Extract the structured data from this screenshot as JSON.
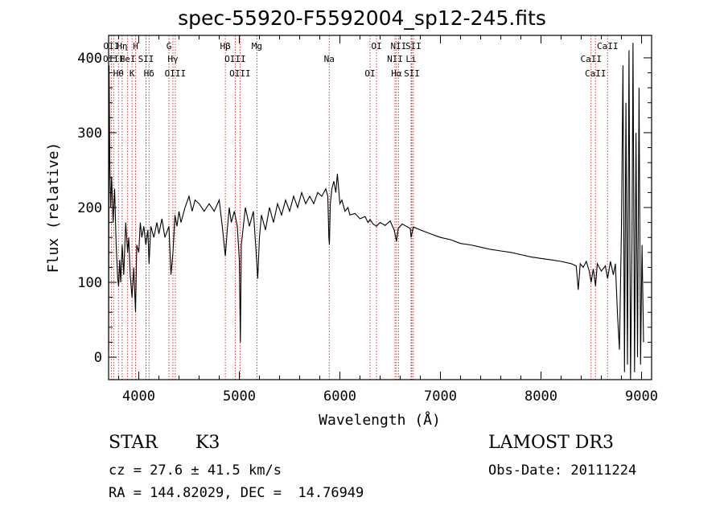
{
  "header": {
    "title": "spec-55920-F5592004_sp12-245.fits"
  },
  "info": {
    "object_class": "STAR",
    "subclass": "K3",
    "survey": "LAMOST DR3",
    "cz_line": "cz = 27.6 ± 41.5 km/s",
    "obs_date_line": "Obs-Date: 20111224",
    "coords_line": "RA = 144.82029, DEC =  14.76949"
  },
  "chart_data": {
    "type": "line",
    "title": "spec-55920-F5592004_sp12-245.fits",
    "xlabel": "Wavelength (Å)",
    "ylabel": "Flux (relative)",
    "xlim": [
      3700,
      9100
    ],
    "ylim": [
      -30,
      430
    ],
    "xticks": [
      4000,
      5000,
      6000,
      7000,
      8000,
      9000
    ],
    "yticks": [
      0,
      100,
      200,
      300,
      400
    ],
    "line_color": "#000000",
    "marker_color": "#cc2222",
    "series": [
      {
        "name": "spectrum",
        "points": [
          [
            3700,
            10
          ],
          [
            3705,
            390
          ],
          [
            3712,
            260
          ],
          [
            3720,
            200
          ],
          [
            3730,
            240
          ],
          [
            3745,
            180
          ],
          [
            3760,
            225
          ],
          [
            3775,
            150
          ],
          [
            3790,
            105
          ],
          [
            3800,
            95
          ],
          [
            3810,
            130
          ],
          [
            3820,
            100
          ],
          [
            3835,
            150
          ],
          [
            3850,
            110
          ],
          [
            3870,
            180
          ],
          [
            3889,
            140
          ],
          [
            3900,
            160
          ],
          [
            3915,
            110
          ],
          [
            3933,
            80
          ],
          [
            3950,
            120
          ],
          [
            3968,
            60
          ],
          [
            3980,
            150
          ],
          [
            4000,
            140
          ],
          [
            4015,
            180
          ],
          [
            4030,
            160
          ],
          [
            4050,
            175
          ],
          [
            4070,
            150
          ],
          [
            4090,
            170
          ],
          [
            4102,
            125
          ],
          [
            4120,
            175
          ],
          [
            4150,
            160
          ],
          [
            4180,
            180
          ],
          [
            4200,
            165
          ],
          [
            4230,
            185
          ],
          [
            4260,
            160
          ],
          [
            4300,
            175
          ],
          [
            4320,
            110
          ],
          [
            4340,
            140
          ],
          [
            4360,
            190
          ],
          [
            4380,
            175
          ],
          [
            4400,
            195
          ],
          [
            4420,
            180
          ],
          [
            4460,
            200
          ],
          [
            4500,
            215
          ],
          [
            4530,
            195
          ],
          [
            4560,
            210
          ],
          [
            4600,
            205
          ],
          [
            4650,
            195
          ],
          [
            4700,
            205
          ],
          [
            4750,
            195
          ],
          [
            4800,
            210
          ],
          [
            4830,
            175
          ],
          [
            4861,
            135
          ],
          [
            4880,
            170
          ],
          [
            4900,
            200
          ],
          [
            4920,
            180
          ],
          [
            4950,
            195
          ],
          [
            4980,
            175
          ],
          [
            5000,
            130
          ],
          [
            5010,
            20
          ],
          [
            5020,
            150
          ],
          [
            5060,
            200
          ],
          [
            5100,
            175
          ],
          [
            5140,
            195
          ],
          [
            5167,
            140
          ],
          [
            5183,
            105
          ],
          [
            5200,
            160
          ],
          [
            5220,
            190
          ],
          [
            5260,
            170
          ],
          [
            5300,
            200
          ],
          [
            5340,
            180
          ],
          [
            5380,
            205
          ],
          [
            5420,
            190
          ],
          [
            5460,
            210
          ],
          [
            5500,
            195
          ],
          [
            5540,
            215
          ],
          [
            5580,
            200
          ],
          [
            5620,
            220
          ],
          [
            5660,
            205
          ],
          [
            5700,
            215
          ],
          [
            5740,
            205
          ],
          [
            5780,
            220
          ],
          [
            5820,
            215
          ],
          [
            5860,
            225
          ],
          [
            5880,
            215
          ],
          [
            5890,
            160
          ],
          [
            5896,
            150
          ],
          [
            5905,
            205
          ],
          [
            5920,
            225
          ],
          [
            5940,
            235
          ],
          [
            5960,
            220
          ],
          [
            5975,
            245
          ],
          [
            5985,
            230
          ],
          [
            6000,
            205
          ],
          [
            6020,
            210
          ],
          [
            6050,
            195
          ],
          [
            6080,
            200
          ],
          [
            6100,
            190
          ],
          [
            6150,
            192
          ],
          [
            6200,
            185
          ],
          [
            6250,
            188
          ],
          [
            6280,
            180
          ],
          [
            6300,
            184
          ],
          [
            6330,
            178
          ],
          [
            6364,
            175
          ],
          [
            6400,
            180
          ],
          [
            6450,
            176
          ],
          [
            6500,
            182
          ],
          [
            6540,
            170
          ],
          [
            6563,
            155
          ],
          [
            6580,
            172
          ],
          [
            6620,
            178
          ],
          [
            6660,
            175
          ],
          [
            6700,
            172
          ],
          [
            6708,
            160
          ],
          [
            6730,
            174
          ],
          [
            6800,
            170
          ],
          [
            6900,
            165
          ],
          [
            7000,
            160
          ],
          [
            7100,
            157
          ],
          [
            7200,
            152
          ],
          [
            7300,
            150
          ],
          [
            7400,
            147
          ],
          [
            7500,
            144
          ],
          [
            7600,
            142
          ],
          [
            7700,
            140
          ],
          [
            7800,
            137
          ],
          [
            7900,
            134
          ],
          [
            8000,
            132
          ],
          [
            8100,
            130
          ],
          [
            8200,
            128
          ],
          [
            8300,
            125
          ],
          [
            8350,
            122
          ],
          [
            8370,
            90
          ],
          [
            8390,
            125
          ],
          [
            8420,
            120
          ],
          [
            8450,
            128
          ],
          [
            8480,
            115
          ],
          [
            8498,
            100
          ],
          [
            8520,
            118
          ],
          [
            8542,
            95
          ],
          [
            8560,
            125
          ],
          [
            8600,
            115
          ],
          [
            8640,
            122
          ],
          [
            8662,
            105
          ],
          [
            8690,
            128
          ],
          [
            8720,
            110
          ],
          [
            8740,
            125
          ],
          [
            8760,
            60
          ],
          [
            8780,
            10
          ],
          [
            8800,
            170
          ],
          [
            8815,
            390
          ],
          [
            8830,
            -20
          ],
          [
            8845,
            340
          ],
          [
            8860,
            -10
          ],
          [
            8875,
            410
          ],
          [
            8890,
            -30
          ],
          [
            8905,
            150
          ],
          [
            8915,
            420
          ],
          [
            8930,
            -20
          ],
          [
            8945,
            300
          ],
          [
            8960,
            0
          ],
          [
            8975,
            360
          ],
          [
            8990,
            -10
          ],
          [
            9005,
            150
          ],
          [
            9020,
            20
          ]
        ]
      }
    ],
    "lines": [
      {
        "wavelength": 3727,
        "label": "OII"
      },
      {
        "wavelength": 3750,
        "label": "OIII"
      },
      {
        "wavelength": 3798,
        "label": "Hθ"
      },
      {
        "wavelength": 3835,
        "label": "Hη"
      },
      {
        "wavelength": 3889,
        "label": "HeI"
      },
      {
        "wavelength": 3933,
        "label": "K"
      },
      {
        "wavelength": 3968,
        "label": "H"
      },
      {
        "wavelength": 4072,
        "label": "SII"
      },
      {
        "wavelength": 4102,
        "label": "Hδ"
      },
      {
        "wavelength": 4300,
        "label": "G"
      },
      {
        "wavelength": 4340,
        "label": "Hγ"
      },
      {
        "wavelength": 4363,
        "label": "OIII"
      },
      {
        "wavelength": 4861,
        "label": "Hβ"
      },
      {
        "wavelength": 4959,
        "label": "OIII"
      },
      {
        "wavelength": 5007,
        "label": "OIII"
      },
      {
        "wavelength": 5175,
        "label": "Mg"
      },
      {
        "wavelength": 5894,
        "label": "Na"
      },
      {
        "wavelength": 6300,
        "label": "OI"
      },
      {
        "wavelength": 6364,
        "label": "OI"
      },
      {
        "wavelength": 6548,
        "label": "NII"
      },
      {
        "wavelength": 6563,
        "label": "Hα"
      },
      {
        "wavelength": 6583,
        "label": "NII"
      },
      {
        "wavelength": 6708,
        "label": "Li"
      },
      {
        "wavelength": 6716,
        "label": "SII"
      },
      {
        "wavelength": 6731,
        "label": "SII"
      },
      {
        "wavelength": 8498,
        "label": "CaII"
      },
      {
        "wavelength": 8542,
        "label": "CaII"
      },
      {
        "wavelength": 8662,
        "label": "CaII"
      }
    ]
  }
}
